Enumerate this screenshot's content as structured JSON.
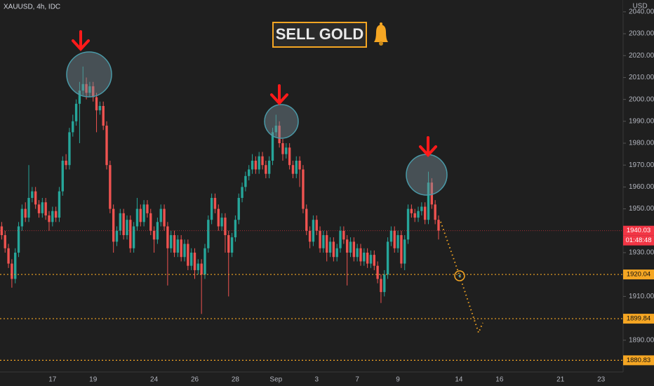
{
  "chart_data": {
    "type": "candlestick",
    "title": "XAUUSD, 4h, IDC",
    "currency": "USD",
    "annotation": "SELL GOLD",
    "countdown": "01:48:48",
    "up_color": "#26a69a",
    "down_color": "#ef5350",
    "ylim": [
      1875.5,
      2045.4
    ],
    "yticks": [
      {
        "value": 2040,
        "label": "2040.00"
      },
      {
        "value": 2030,
        "label": "2030.00"
      },
      {
        "value": 2020,
        "label": "2020.00"
      },
      {
        "value": 2010,
        "label": "2010.00"
      },
      {
        "value": 2000,
        "label": "2000.00"
      },
      {
        "value": 1990,
        "label": "1990.00"
      },
      {
        "value": 1980,
        "label": "1980.00"
      },
      {
        "value": 1970,
        "label": "1970.00"
      },
      {
        "value": 1960,
        "label": "1960.00"
      },
      {
        "value": 1950,
        "label": "1950.00"
      },
      {
        "value": 1930,
        "label": "1930.00"
      },
      {
        "value": 1910,
        "label": "1910.00"
      },
      {
        "value": 1890,
        "label": "1890.00"
      }
    ],
    "price_lines": [
      {
        "value": 1940.03,
        "color": "#f23645"
      },
      {
        "value": 1920.04,
        "color": "#f5a623"
      },
      {
        "value": 1899.84,
        "color": "#f5a623"
      },
      {
        "value": 1880.83,
        "color": "#f5a623"
      }
    ],
    "categories": [
      null,
      null,
      null,
      null,
      null,
      null,
      null,
      null,
      null,
      null,
      null,
      null,
      null,
      null,
      null,
      "17",
      null,
      null,
      null,
      null,
      null,
      null,
      null,
      null,
      null,
      null,
      null,
      "19",
      null,
      null,
      null,
      null,
      null,
      null,
      null,
      null,
      null,
      null,
      null,
      null,
      null,
      null,
      null,
      null,
      null,
      "24",
      null,
      null,
      null,
      null,
      null,
      null,
      null,
      null,
      null,
      null,
      null,
      "26",
      null,
      null,
      null,
      null,
      null,
      null,
      null,
      null,
      null,
      null,
      null,
      "28",
      null,
      null,
      null,
      null,
      null,
      null,
      null,
      null,
      null,
      null,
      null,
      "Sep",
      null,
      null,
      null,
      null,
      null,
      null,
      null,
      null,
      null,
      null,
      null,
      "3",
      null,
      null,
      null,
      null,
      null,
      null,
      null,
      null,
      null,
      null,
      null,
      "7",
      null,
      null,
      null,
      null,
      null,
      null,
      null,
      null,
      null,
      null,
      null,
      "9",
      null,
      null,
      null,
      null,
      null,
      null,
      null,
      null,
      null,
      null,
      null,
      null,
      null,
      null,
      null,
      null,
      null,
      "14",
      null,
      null,
      null,
      null,
      null,
      null,
      null,
      null,
      null,
      null,
      null,
      "16",
      null,
      null,
      null,
      null,
      null,
      null,
      null,
      null,
      null,
      null,
      null,
      null,
      null,
      null,
      null,
      null,
      null,
      "21",
      null,
      null,
      null,
      null,
      null,
      null,
      null,
      null,
      null,
      null,
      null,
      "23",
      null,
      null,
      null,
      null,
      null,
      null
    ],
    "candles": [
      [
        1942,
        1944,
        1936,
        1938
      ],
      [
        1938,
        1940,
        1930,
        1932
      ],
      [
        1932,
        1934,
        1923,
        1925
      ],
      [
        1925,
        1927,
        1914,
        1918
      ],
      [
        1918,
        1932,
        1916,
        1930
      ],
      [
        1930,
        1944,
        1928,
        1942
      ],
      [
        1942,
        1952,
        1940,
        1950
      ],
      [
        1950,
        1953,
        1944,
        1946
      ],
      [
        1946,
        1970,
        1944,
        1955
      ],
      [
        1955,
        1960,
        1953,
        1958
      ],
      [
        1958,
        1960,
        1950,
        1952
      ],
      [
        1952,
        1954,
        1946,
        1948
      ],
      [
        1948,
        1955,
        1946,
        1953
      ],
      [
        1953,
        1955,
        1945,
        1947
      ],
      [
        1947,
        1949,
        1940,
        1944
      ],
      [
        1944,
        1951,
        1942,
        1949
      ],
      [
        1949,
        1951,
        1944,
        1946
      ],
      [
        1946,
        1960,
        1944,
        1958
      ],
      [
        1958,
        1974,
        1956,
        1972
      ],
      [
        1972,
        1975,
        1968,
        1970
      ],
      [
        1970,
        1987,
        1968,
        1985
      ],
      [
        1985,
        1993,
        1983,
        1990
      ],
      [
        1990,
        2000,
        1988,
        1998
      ],
      [
        1998,
        2008,
        1980,
        2004
      ],
      [
        2004,
        2015,
        2002,
        2007
      ],
      [
        2007,
        2010,
        2000,
        2003
      ],
      [
        2003,
        2008,
        2001,
        2006
      ],
      [
        2006,
        2008,
        1999,
        2001
      ],
      [
        2001,
        2003,
        1985,
        1995
      ],
      [
        1995,
        1999,
        1993,
        1997
      ],
      [
        1997,
        1999,
        1986,
        1988
      ],
      [
        1988,
        1990,
        1968,
        1970
      ],
      [
        1970,
        1972,
        1948,
        1950
      ],
      [
        1950,
        1952,
        1930,
        1935
      ],
      [
        1935,
        1942,
        1933,
        1940
      ],
      [
        1940,
        1950,
        1938,
        1948
      ],
      [
        1948,
        1950,
        1936,
        1938
      ],
      [
        1938,
        1947,
        1936,
        1945
      ],
      [
        1945,
        1947,
        1930,
        1932
      ],
      [
        1932,
        1944,
        1930,
        1942
      ],
      [
        1942,
        1955,
        1940,
        1950
      ],
      [
        1950,
        1952,
        1942,
        1944
      ],
      [
        1944,
        1954,
        1942,
        1952
      ],
      [
        1952,
        1954,
        1946,
        1948
      ],
      [
        1948,
        1950,
        1938,
        1940
      ],
      [
        1940,
        1942,
        1930,
        1936
      ],
      [
        1936,
        1946,
        1934,
        1944
      ],
      [
        1944,
        1952,
        1942,
        1950
      ],
      [
        1950,
        1952,
        1940,
        1942
      ],
      [
        1942,
        1944,
        1915,
        1932
      ],
      [
        1932,
        1940,
        1930,
        1938
      ],
      [
        1938,
        1940,
        1928,
        1930
      ],
      [
        1930,
        1938,
        1928,
        1936
      ],
      [
        1936,
        1938,
        1926,
        1928
      ],
      [
        1928,
        1936,
        1926,
        1934
      ],
      [
        1934,
        1936,
        1922,
        1924
      ],
      [
        1924,
        1932,
        1922,
        1930
      ],
      [
        1930,
        1932,
        1918,
        1922
      ],
      [
        1922,
        1927,
        1920,
        1925
      ],
      [
        1925,
        1927,
        1902,
        1920
      ],
      [
        1920,
        1934,
        1918,
        1932
      ],
      [
        1932,
        1947,
        1930,
        1945
      ],
      [
        1945,
        1957,
        1943,
        1955
      ],
      [
        1955,
        1957,
        1948,
        1950
      ],
      [
        1950,
        1952,
        1940,
        1942
      ],
      [
        1942,
        1948,
        1940,
        1946
      ],
      [
        1946,
        1948,
        1930,
        1938
      ],
      [
        1938,
        1940,
        1910,
        1930
      ],
      [
        1930,
        1939,
        1928,
        1937
      ],
      [
        1937,
        1947,
        1935,
        1945
      ],
      [
        1945,
        1957,
        1943,
        1955
      ],
      [
        1955,
        1962,
        1953,
        1960
      ],
      [
        1960,
        1967,
        1958,
        1965
      ],
      [
        1965,
        1970,
        1963,
        1968
      ],
      [
        1968,
        1975,
        1966,
        1972
      ],
      [
        1972,
        1974,
        1966,
        1968
      ],
      [
        1968,
        1976,
        1966,
        1974
      ],
      [
        1974,
        1976,
        1968,
        1970
      ],
      [
        1970,
        1972,
        1964,
        1966
      ],
      [
        1966,
        1974,
        1964,
        1972
      ],
      [
        1972,
        1987,
        1970,
        1985
      ],
      [
        1985,
        1993,
        1983,
        1988
      ],
      [
        1988,
        1990,
        1978,
        1980
      ],
      [
        1980,
        1982,
        1972,
        1975
      ],
      [
        1975,
        1980,
        1973,
        1978
      ],
      [
        1978,
        1980,
        1968,
        1970
      ],
      [
        1970,
        1972,
        1964,
        1966
      ],
      [
        1966,
        1974,
        1964,
        1972
      ],
      [
        1972,
        1974,
        1960,
        1968
      ],
      [
        1968,
        1970,
        1948,
        1950
      ],
      [
        1950,
        1952,
        1938,
        1940
      ],
      [
        1940,
        1942,
        1932,
        1935
      ],
      [
        1935,
        1947,
        1933,
        1945
      ],
      [
        1945,
        1947,
        1938,
        1940
      ],
      [
        1940,
        1942,
        1930,
        1932
      ],
      [
        1932,
        1940,
        1930,
        1938
      ],
      [
        1938,
        1940,
        1926,
        1930
      ],
      [
        1930,
        1937,
        1928,
        1935
      ],
      [
        1935,
        1937,
        1926,
        1928
      ],
      [
        1928,
        1934,
        1926,
        1932
      ],
      [
        1932,
        1942,
        1930,
        1940
      ],
      [
        1940,
        1942,
        1934,
        1936
      ],
      [
        1936,
        1938,
        1915,
        1930
      ],
      [
        1930,
        1937,
        1928,
        1935
      ],
      [
        1935,
        1937,
        1926,
        1928
      ],
      [
        1928,
        1934,
        1926,
        1932
      ],
      [
        1932,
        1934,
        1924,
        1926
      ],
      [
        1926,
        1932,
        1924,
        1930
      ],
      [
        1930,
        1932,
        1923,
        1925
      ],
      [
        1925,
        1931,
        1923,
        1929
      ],
      [
        1929,
        1931,
        1922,
        1924
      ],
      [
        1924,
        1926,
        1916,
        1918
      ],
      [
        1918,
        1920,
        1907,
        1912
      ],
      [
        1912,
        1922,
        1910,
        1920
      ],
      [
        1920,
        1937,
        1918,
        1935
      ],
      [
        1935,
        1942,
        1933,
        1940
      ],
      [
        1940,
        1942,
        1930,
        1932
      ],
      [
        1932,
        1940,
        1930,
        1938
      ],
      [
        1938,
        1940,
        1923,
        1925
      ],
      [
        1925,
        1938,
        1922,
        1936
      ],
      [
        1936,
        1952,
        1934,
        1950
      ],
      [
        1950,
        1952,
        1946,
        1948
      ],
      [
        1948,
        1950,
        1944,
        1946
      ],
      [
        1946,
        1951,
        1944,
        1949
      ],
      [
        1949,
        1953,
        1947,
        1951
      ],
      [
        1951,
        1953,
        1943,
        1945
      ],
      [
        1945,
        1967,
        1943,
        1962
      ],
      [
        1962,
        1964,
        1950,
        1952
      ],
      [
        1952,
        1954,
        1943,
        1945
      ],
      [
        1945,
        1947,
        1936,
        1940.03
      ],
      null,
      null,
      null,
      null,
      null,
      null,
      null,
      null,
      null,
      null,
      null,
      null,
      null,
      null,
      null,
      null,
      null,
      null,
      null,
      null,
      null,
      null,
      null,
      null,
      null,
      null,
      null,
      null,
      null,
      null,
      null,
      null,
      null,
      null,
      null,
      null,
      null,
      null,
      null,
      null,
      null,
      null,
      null,
      null,
      null,
      null,
      null,
      null,
      null,
      null,
      null,
      null,
      null,
      null
    ]
  }
}
